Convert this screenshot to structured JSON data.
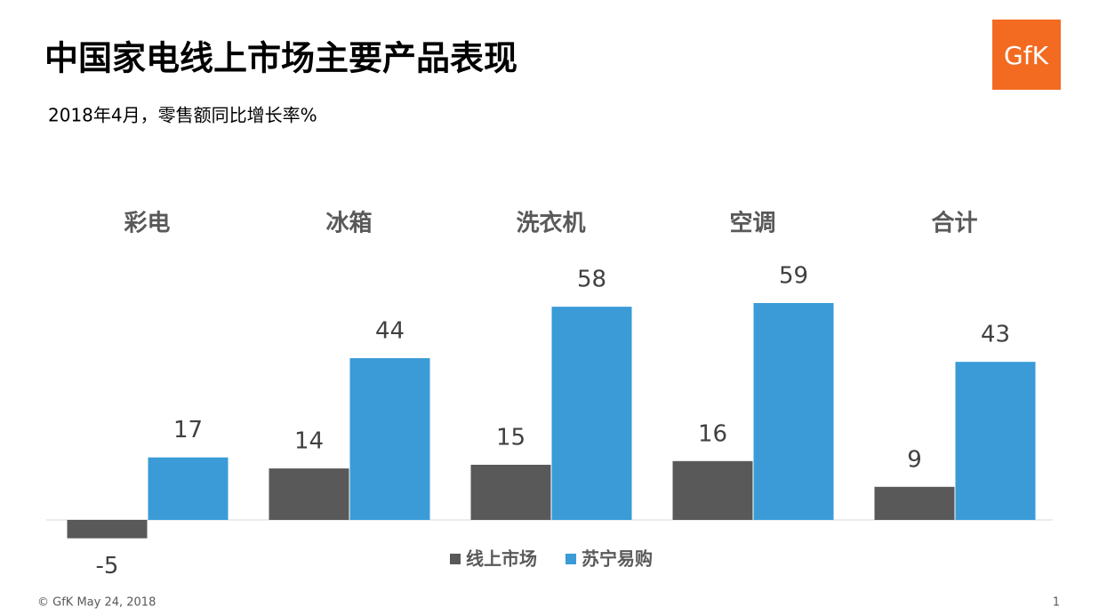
{
  "chart_data": {
    "type": "bar",
    "title": "中国家电线上市场主要产品表现",
    "subtitle": "2018年4月，零售额同比增长率%",
    "categories": [
      "彩电",
      "冰箱",
      "洗衣机",
      "空调",
      "合计"
    ],
    "series": [
      {
        "name": "线上市场",
        "color": "#595959",
        "values": [
          -5,
          14,
          15,
          16,
          9
        ]
      },
      {
        "name": "苏宁易购",
        "color": "#3a9bd7",
        "values": [
          17,
          44,
          58,
          59,
          43
        ]
      }
    ],
    "legend": "bottom"
  },
  "logo": "GfK",
  "footer": "© GfK May 24, 2018",
  "page_number": "1"
}
